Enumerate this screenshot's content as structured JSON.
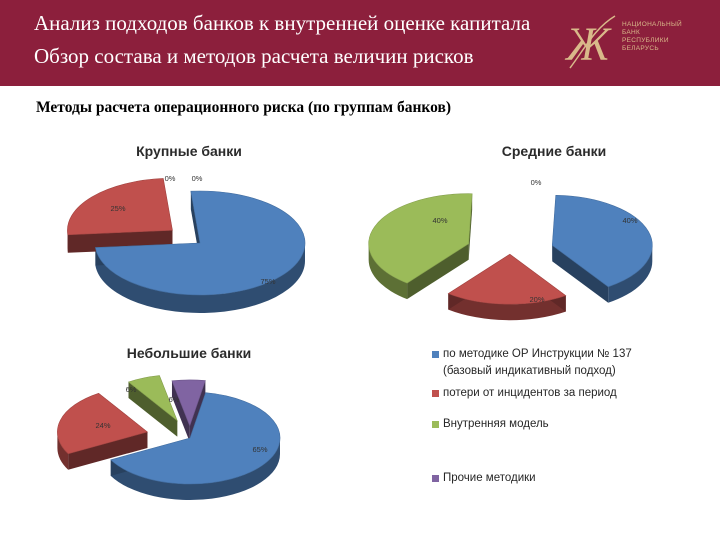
{
  "header": {
    "title_line1": "Анализ подходов банков к внутренней оценке капитала",
    "title_line2": "Обзор состава и методов расчета величин рисков",
    "logo_text": [
      "НАЦИОНАЛЬНЫЙ",
      "БАНК",
      "РЕСПУБЛИКИ",
      "БЕЛАРУСЬ"
    ]
  },
  "subtitle": "Методы расчета операционного риска (по группам банков)",
  "colors": {
    "header_bg": "#8c1f3c",
    "blue": "#4f81bd",
    "red": "#c0504d",
    "green": "#9bbb59",
    "purple": "#8064a2"
  },
  "legend": [
    {
      "label": "по методике ОР Инструкции № 137 (базовый индикативный подход)",
      "color": "#4f81bd"
    },
    {
      "label": "потери от инцидентов за период",
      "color": "#c0504d"
    },
    {
      "label": "Внутренняя модель",
      "color": "#9bbb59"
    },
    {
      "label": "Прочие методики",
      "color": "#8064a2"
    }
  ],
  "chart_data": [
    {
      "type": "pie",
      "title": "Крупные банки",
      "categories": [
        "по методике ОР Инструкции № 137 (базовый индикативный подход)",
        "потери от инцидентов за период",
        "Внутренняя модель",
        "Прочие методики"
      ],
      "values": [
        75,
        25,
        0,
        0
      ],
      "labels": [
        "75%",
        "25%",
        "0%",
        "0%"
      ]
    },
    {
      "type": "pie",
      "title": "Средние банки",
      "categories": [
        "по методике ОР Инструкции № 137 (базовый индикативный подход)",
        "потери от инцидентов за период",
        "Внутренняя модель",
        "Прочие методики"
      ],
      "values": [
        40,
        20,
        40,
        0
      ],
      "labels": [
        "40%",
        "20%",
        "40%",
        "0%"
      ]
    },
    {
      "type": "pie",
      "title": "Небольшие банки",
      "categories": [
        "по методике ОР Инструкции № 137 (базовый индикативный подход)",
        "потери от инцидентов за период",
        "Внутренняя модель",
        "Прочие методики"
      ],
      "values": [
        65,
        24,
        6,
        6
      ],
      "labels": [
        "65%",
        "24%",
        "6%",
        "6%"
      ]
    }
  ]
}
